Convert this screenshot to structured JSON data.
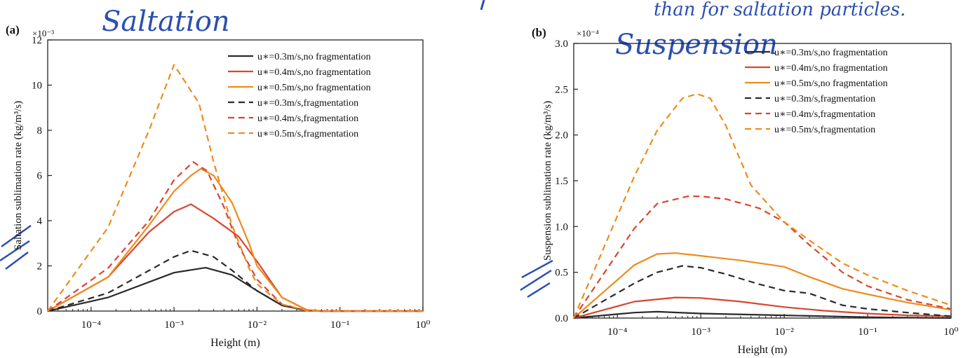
{
  "handwritten": {
    "panel_a_title": "Saltation",
    "panel_b_title": "Suspension",
    "top_note": "than for saltation particles."
  },
  "legend_colors": {
    "u03": "#2a2a2a",
    "u04": "#d9452f",
    "u05": "#ee8b1c",
    "ink": "#2b4fb0"
  },
  "chart_data": [
    {
      "panel_label": "(a)",
      "type": "line",
      "xscale": "log",
      "xlim": [
        3e-05,
        1
      ],
      "ylim": [
        0,
        12
      ],
      "y_multiplier": "×10⁻³",
      "xlabel": "Height (m)",
      "ylabel": "Saltation sublimation rate (kg/m³/s)",
      "xticks": [
        {
          "v": 0.0001,
          "label": "10⁻⁴"
        },
        {
          "v": 0.001,
          "label": "10⁻³"
        },
        {
          "v": 0.01,
          "label": "10⁻²"
        },
        {
          "v": 0.1,
          "label": "10⁻¹"
        },
        {
          "v": 1,
          "label": "10⁰"
        }
      ],
      "yticks": [
        {
          "v": 0,
          "label": "0"
        },
        {
          "v": 2,
          "label": "2"
        },
        {
          "v": 4,
          "label": "4"
        },
        {
          "v": 6,
          "label": "6"
        },
        {
          "v": 8,
          "label": "8"
        },
        {
          "v": 10,
          "label": "10"
        },
        {
          "v": 12,
          "label": "12"
        }
      ],
      "legend_position": "top-right",
      "series": [
        {
          "name": "u∗=0.3m/s,no fragmentation",
          "color": "#2a2a2a",
          "dash": false,
          "x": [
            3e-05,
            0.00016,
            0.001,
            0.0024,
            0.005,
            0.01,
            0.02,
            0.04,
            0.06,
            1
          ],
          "y": [
            0,
            0.6,
            1.7,
            1.92,
            1.6,
            0.9,
            0.25,
            0.02,
            0,
            0
          ]
        },
        {
          "name": "u∗=0.4m/s,no fragmentation",
          "color": "#d9452f",
          "dash": false,
          "x": [
            3e-05,
            0.00016,
            0.0005,
            0.001,
            0.0016,
            0.003,
            0.006,
            0.01,
            0.02,
            0.04,
            0.06,
            1
          ],
          "y": [
            0,
            1.5,
            3.5,
            4.4,
            4.73,
            4.1,
            3.3,
            2.2,
            0.6,
            0.05,
            0,
            0
          ]
        },
        {
          "name": "u∗=0.5m/s,no fragmentation",
          "color": "#ee8b1c",
          "dash": false,
          "x": [
            3e-05,
            0.00016,
            0.0005,
            0.001,
            0.0016,
            0.0021,
            0.003,
            0.005,
            0.008,
            0.01,
            0.02,
            0.04,
            0.06,
            1
          ],
          "y": [
            0,
            1.5,
            3.8,
            5.3,
            6.0,
            6.3,
            6.0,
            4.8,
            3.0,
            2.0,
            0.6,
            0.05,
            0,
            0
          ]
        },
        {
          "name": "u∗=0.3m/s,fragmentation",
          "color": "#2a2a2a",
          "dash": true,
          "x": [
            3e-05,
            0.00016,
            0.001,
            0.0016,
            0.003,
            0.005,
            0.01,
            0.02,
            0.04,
            0.06,
            1
          ],
          "y": [
            0,
            0.8,
            2.4,
            2.68,
            2.4,
            1.8,
            0.9,
            0.25,
            0.02,
            0,
            0
          ]
        },
        {
          "name": "u∗=0.4m/s,fragmentation",
          "color": "#d9452f",
          "dash": true,
          "x": [
            3e-05,
            0.00016,
            0.0005,
            0.001,
            0.0017,
            0.0025,
            0.004,
            0.006,
            0.01,
            0.02,
            0.04,
            0.06,
            1
          ],
          "y": [
            0,
            1.9,
            4.0,
            5.8,
            6.6,
            6.2,
            4.6,
            2.9,
            1.4,
            0.3,
            0.02,
            0,
            0
          ]
        },
        {
          "name": "u∗=0.5m/s,fragmentation",
          "color": "#ee8b1c",
          "dash": true,
          "x": [
            3e-05,
            0.00016,
            0.0005,
            0.001,
            0.002,
            0.003,
            0.005,
            0.008,
            0.01,
            0.02,
            0.04,
            0.06,
            1
          ],
          "y": [
            0,
            3.7,
            8.0,
            10.9,
            9.2,
            6.6,
            3.8,
            1.9,
            1.2,
            0.3,
            0.02,
            0,
            0
          ]
        }
      ]
    },
    {
      "panel_label": "(b)",
      "type": "line",
      "xscale": "log",
      "xlim": [
        3e-05,
        1
      ],
      "ylim": [
        0,
        3
      ],
      "y_multiplier": "×10⁻⁴",
      "xlabel": "Height (m)",
      "ylabel": "Suspension sublimation rate (kg/m³/s)",
      "xticks": [
        {
          "v": 0.0001,
          "label": "10⁻⁴"
        },
        {
          "v": 0.001,
          "label": "10⁻³"
        },
        {
          "v": 0.01,
          "label": "10⁻²"
        },
        {
          "v": 0.1,
          "label": "10⁻¹"
        },
        {
          "v": 1,
          "label": "10⁰"
        }
      ],
      "yticks": [
        {
          "v": 0,
          "label": "0.0"
        },
        {
          "v": 0.5,
          "label": "0.5"
        },
        {
          "v": 1.0,
          "label": "1.0"
        },
        {
          "v": 1.5,
          "label": "1.5"
        },
        {
          "v": 2.0,
          "label": "2.0"
        },
        {
          "v": 2.5,
          "label": "2.5"
        },
        {
          "v": 3.0,
          "label": "3.0"
        }
      ],
      "legend_position": "top-right",
      "series": [
        {
          "name": "u∗=0.3m/s,no fragmentation",
          "color": "#2a2a2a",
          "dash": false,
          "x": [
            3e-05,
            0.00016,
            0.0003,
            0.001,
            0.01,
            0.1,
            1
          ],
          "y": [
            0,
            0.06,
            0.07,
            0.05,
            0.03,
            0.01,
            0.0
          ]
        },
        {
          "name": "u∗=0.4m/s,no fragmentation",
          "color": "#d9452f",
          "dash": false,
          "x": [
            3e-05,
            0.00016,
            0.0005,
            0.001,
            0.003,
            0.01,
            0.03,
            0.1,
            0.3,
            1
          ],
          "y": [
            0,
            0.18,
            0.225,
            0.22,
            0.18,
            0.12,
            0.08,
            0.05,
            0.03,
            0.02
          ]
        },
        {
          "name": "u∗=0.5m/s,no fragmentation",
          "color": "#ee8b1c",
          "dash": false,
          "x": [
            3e-05,
            0.00016,
            0.0003,
            0.0005,
            0.001,
            0.003,
            0.01,
            0.02,
            0.05,
            0.1,
            0.3,
            1
          ],
          "y": [
            0,
            0.58,
            0.7,
            0.71,
            0.68,
            0.63,
            0.56,
            0.45,
            0.32,
            0.26,
            0.17,
            0.09
          ]
        },
        {
          "name": "u∗=0.3m/s,fragmentation",
          "color": "#2a2a2a",
          "dash": true,
          "x": [
            3e-05,
            0.00016,
            0.0003,
            0.0006,
            0.001,
            0.002,
            0.005,
            0.01,
            0.02,
            0.05,
            0.1,
            0.3,
            1
          ],
          "y": [
            0,
            0.38,
            0.5,
            0.57,
            0.55,
            0.48,
            0.37,
            0.3,
            0.27,
            0.14,
            0.1,
            0.06,
            0.02
          ]
        },
        {
          "name": "u∗=0.4m/s,fragmentation",
          "color": "#d9452f",
          "dash": true,
          "x": [
            3e-05,
            0.00016,
            0.0003,
            0.0007,
            0.001,
            0.002,
            0.005,
            0.01,
            0.02,
            0.05,
            0.1,
            0.3,
            1
          ],
          "y": [
            0,
            0.98,
            1.25,
            1.33,
            1.33,
            1.3,
            1.2,
            1.05,
            0.8,
            0.5,
            0.35,
            0.2,
            0.1
          ]
        },
        {
          "name": "u∗=0.5m/s,fragmentation",
          "color": "#ee8b1c",
          "dash": true,
          "x": [
            3e-05,
            0.00016,
            0.0003,
            0.0006,
            0.0009,
            0.0013,
            0.002,
            0.004,
            0.01,
            0.02,
            0.05,
            0.1,
            0.3,
            1
          ],
          "y": [
            0,
            1.55,
            2.05,
            2.4,
            2.45,
            2.4,
            2.1,
            1.45,
            1.05,
            0.85,
            0.6,
            0.47,
            0.3,
            0.14
          ]
        }
      ]
    }
  ]
}
